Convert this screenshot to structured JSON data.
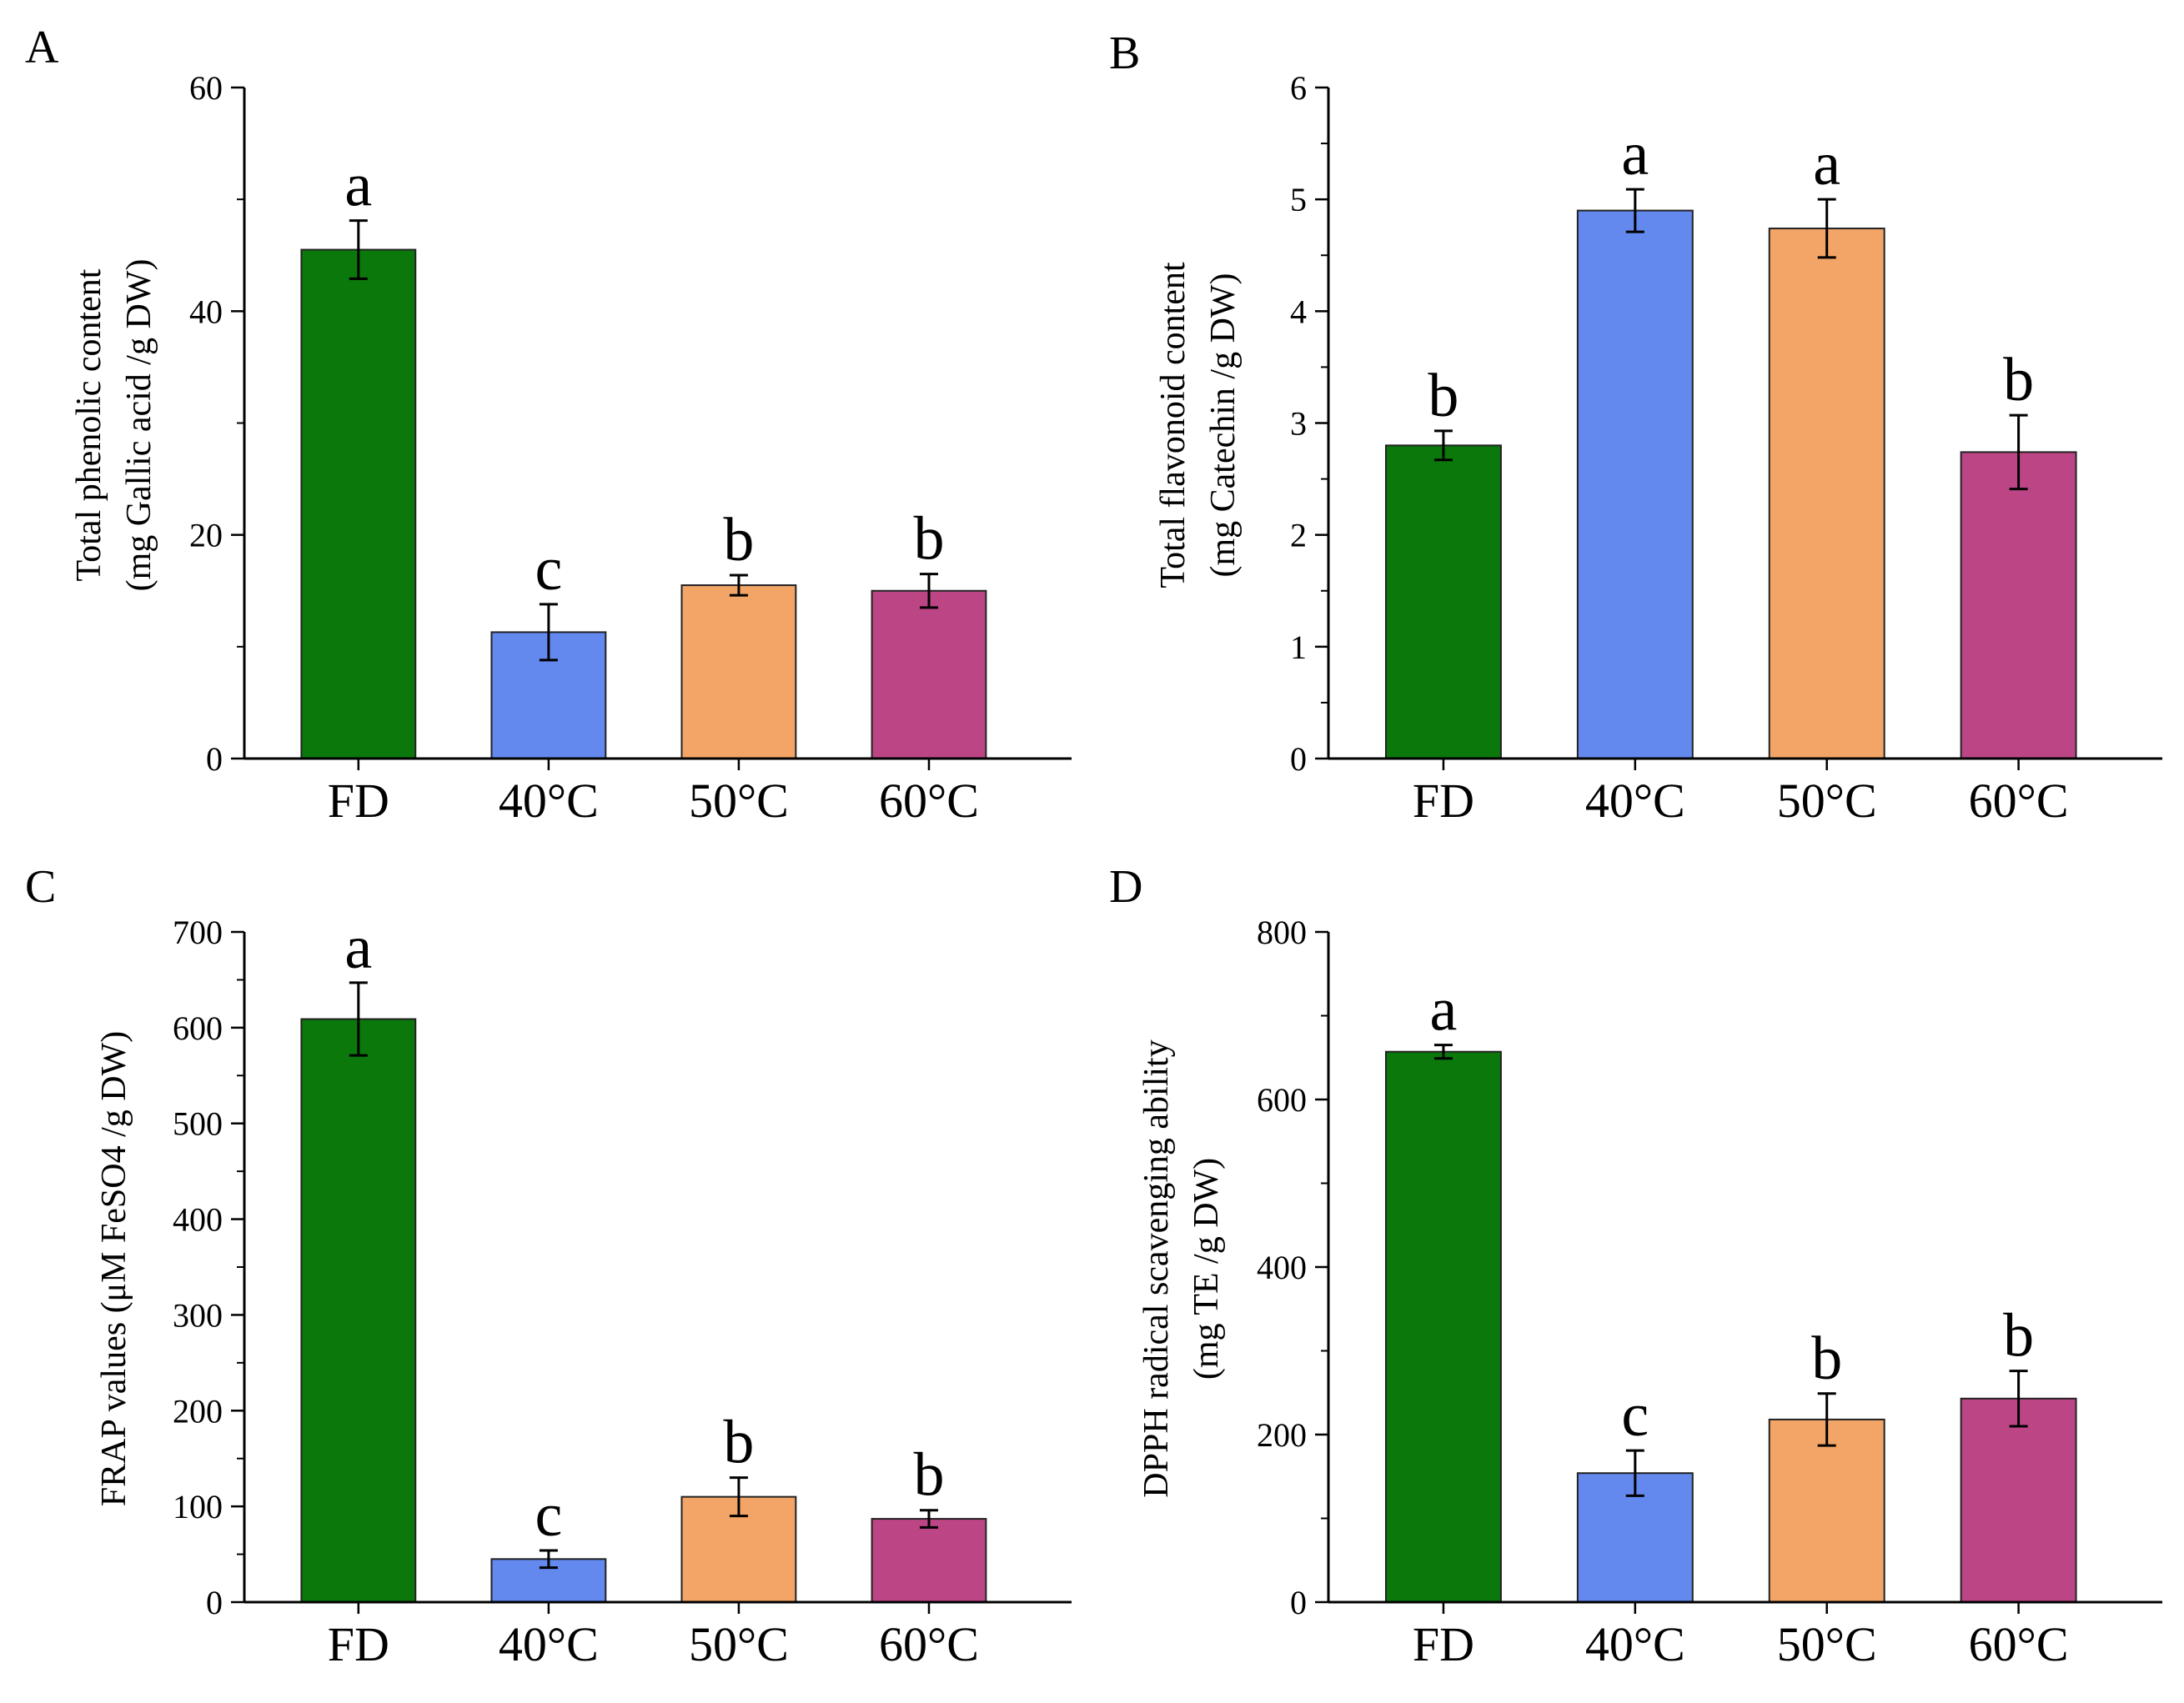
{
  "figure": {
    "panels": [
      "A",
      "B",
      "C",
      "D"
    ]
  },
  "chart_data": [
    {
      "panel": "A",
      "type": "bar",
      "categories": [
        "FD",
        "40°C",
        "50°C",
        "60°C"
      ],
      "values": [
        45.5,
        11.3,
        15.5,
        15.0
      ],
      "errors": [
        2.6,
        2.5,
        0.9,
        1.5
      ],
      "significance": [
        "a",
        "c",
        "b",
        "b"
      ],
      "colors": [
        "#0a780a",
        "#6388ee",
        "#f2a566",
        "#bc4586"
      ],
      "ylabel": [
        "Total phenolic content",
        "(mg Gallic acid /g DW)"
      ],
      "ylim": [
        0,
        60
      ],
      "yticks": [
        0,
        20,
        40,
        60
      ],
      "grid": false
    },
    {
      "panel": "B",
      "type": "bar",
      "categories": [
        "FD",
        "40°C",
        "50°C",
        "60°C"
      ],
      "values": [
        2.8,
        4.9,
        4.74,
        2.74
      ],
      "errors": [
        0.13,
        0.19,
        0.26,
        0.33
      ],
      "significance": [
        "b",
        "a",
        "a",
        "b"
      ],
      "colors": [
        "#0a780a",
        "#6388ee",
        "#f2a566",
        "#bc4586"
      ],
      "ylabel": [
        "Total flavonoid content",
        "(mg Catechin /g DW)"
      ],
      "ylim": [
        0,
        6
      ],
      "yticks": [
        0,
        1,
        2,
        3,
        4,
        5,
        6
      ],
      "grid": false
    },
    {
      "panel": "C",
      "type": "bar",
      "categories": [
        "FD",
        "40°C",
        "50°C",
        "60°C"
      ],
      "values": [
        609,
        45,
        110,
        87
      ],
      "errors": [
        38,
        9,
        20,
        9
      ],
      "significance": [
        "a",
        "c",
        "b",
        "b"
      ],
      "colors": [
        "#0a780a",
        "#6388ee",
        "#f2a566",
        "#bc4586"
      ],
      "ylabel": [
        "FRAP values (μM FeSO4 /g DW)"
      ],
      "ylim": [
        0,
        700
      ],
      "yticks": [
        0,
        100,
        200,
        300,
        400,
        500,
        600,
        700
      ],
      "grid": false
    },
    {
      "panel": "D",
      "type": "bar",
      "categories": [
        "FD",
        "40°C",
        "50°C",
        "60°C"
      ],
      "values": [
        657,
        154,
        218,
        243
      ],
      "errors": [
        8,
        27,
        31,
        33
      ],
      "significance": [
        "a",
        "c",
        "b",
        "b"
      ],
      "colors": [
        "#0a780a",
        "#6388ee",
        "#f2a566",
        "#bc4586"
      ],
      "ylabel": [
        "DPPH radical scavenging ability",
        "(mg TE /g DW)"
      ],
      "ylim": [
        0,
        800
      ],
      "yticks": [
        0,
        200,
        400,
        600,
        800
      ],
      "grid": false
    }
  ]
}
